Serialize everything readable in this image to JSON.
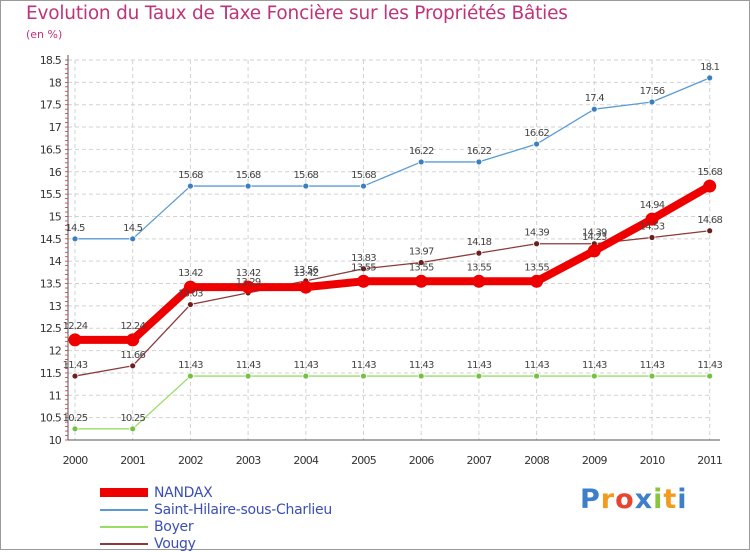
{
  "title": "Evolution du Taux de Taxe Foncière sur les Propriétés Bâties",
  "subtitle": "(en %)",
  "logo": {
    "text": "Proxiti",
    "letter_colors": [
      "#3d7fc8",
      "#f39b1e",
      "#e8442f",
      "#3d7fc8",
      "#8bc43f",
      "#f39b1e",
      "#3d7fc8"
    ]
  },
  "chart_data": {
    "type": "line",
    "x": [
      "2000",
      "2001",
      "2002",
      "2003",
      "2004",
      "2005",
      "2006",
      "2007",
      "2008",
      "2009",
      "2010",
      "2011"
    ],
    "ylim": [
      10,
      18.5
    ],
    "yticks": [
      "10",
      "10.5",
      "11",
      "11.5",
      "12",
      "12.5",
      "13",
      "13.5",
      "14",
      "14.5",
      "15",
      "15.5",
      "16",
      "16.5",
      "17",
      "17.5",
      "18",
      "18.5"
    ],
    "grid": true,
    "series": [
      {
        "name": "Saint-Hilaire-sous-Charlieu",
        "color": "#5b9bd5",
        "point_color": "#3a7fc0",
        "values": [
          14.5,
          14.5,
          15.68,
          15.68,
          15.68,
          15.68,
          16.22,
          16.22,
          16.62,
          17.4,
          17.56,
          18.1
        ],
        "labels": [
          "14.5",
          "14.5",
          "15.68",
          "15.68",
          "15.68",
          "15.68",
          "16.22",
          "16.22",
          "16.62",
          "17.4",
          "17.56",
          "18.1"
        ]
      },
      {
        "name": "Boyer",
        "color": "#99dd66",
        "point_color": "#77c044",
        "values": [
          10.25,
          10.25,
          11.43,
          11.43,
          11.43,
          11.43,
          11.43,
          11.43,
          11.43,
          11.43,
          11.43,
          11.43
        ],
        "labels": [
          "10.25",
          "10.25",
          "11.43",
          "11.43",
          "11.43",
          "11.43",
          "11.43",
          "11.43",
          "11.43",
          "11.43",
          "11.43",
          "11.43"
        ]
      },
      {
        "name": "Vougy",
        "color": "#8b3a3a",
        "point_color": "#6b1f1f",
        "values": [
          11.43,
          11.66,
          13.03,
          13.29,
          13.56,
          13.83,
          13.97,
          14.18,
          14.39,
          14.39,
          14.53,
          14.68
        ],
        "labels": [
          "11.43",
          "11.66",
          "13.03",
          "13.29",
          "13.56",
          "13.83",
          "13.97",
          "14.18",
          "14.39",
          "14.39",
          "14.53",
          "14.68"
        ]
      },
      {
        "name": "NANDAX",
        "color": "#ee0000",
        "point_color": "#ee0000",
        "values": [
          12.24,
          12.24,
          13.42,
          13.42,
          13.42,
          13.55,
          13.55,
          13.55,
          13.55,
          14.23,
          14.94,
          15.68
        ],
        "labels": [
          "12.24",
          "12.24",
          "13.42",
          "13.42",
          "13.42",
          "13.55",
          "13.55",
          "13.55",
          "13.55",
          "14.23",
          "14.94",
          "15.68"
        ]
      }
    ],
    "legend": [
      "NANDAX",
      "Saint-Hilaire-sous-Charlieu",
      "Boyer",
      "Vougy"
    ],
    "legend_position": "bottom-left"
  }
}
